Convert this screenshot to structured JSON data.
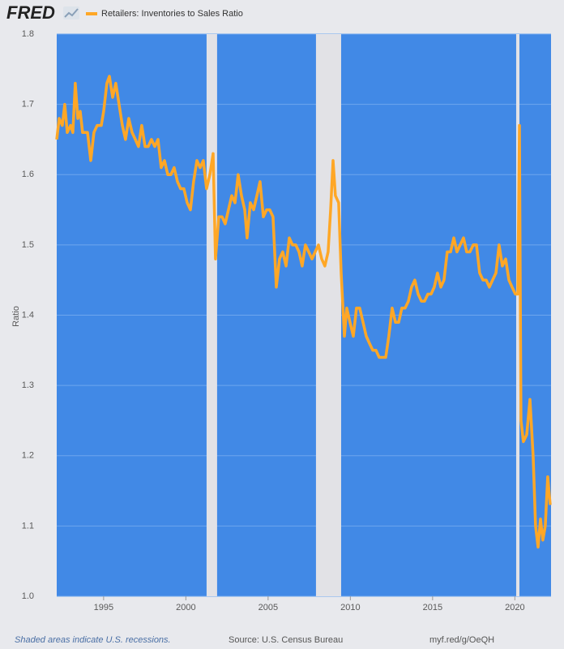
{
  "logo": "FRED",
  "chart_data": {
    "type": "line",
    "y_label": "Ratio",
    "series": [
      {
        "name": "Retailers: Inventories to Sales Ratio",
        "color": "#ffa726",
        "x": [
          1992.15,
          1992.3,
          1992.49,
          1992.64,
          1992.79,
          1992.99,
          1993.13,
          1993.28,
          1993.43,
          1993.58,
          1993.72,
          1994.02,
          1994.22,
          1994.41,
          1994.61,
          1994.86,
          1995.0,
          1995.2,
          1995.35,
          1995.55,
          1995.74,
          1995.94,
          1996.14,
          1996.33,
          1996.53,
          1996.73,
          1996.93,
          1997.12,
          1997.32,
          1997.52,
          1997.71,
          1997.91,
          1998.11,
          1998.31,
          1998.5,
          1998.7,
          1998.9,
          1999.09,
          1999.29,
          1999.49,
          1999.68,
          1999.88,
          2000.08,
          2000.28,
          2000.47,
          2000.67,
          2000.87,
          2001.06,
          2001.26,
          2001.46,
          2001.66,
          2001.8,
          2002.0,
          2002.2,
          2002.39,
          2002.59,
          2002.79,
          2002.99,
          2003.18,
          2003.38,
          2003.58,
          2003.72,
          2003.92,
          2004.12,
          2004.32,
          2004.51,
          2004.71,
          2004.91,
          2005.1,
          2005.3,
          2005.5,
          2005.69,
          2005.89,
          2006.09,
          2006.29,
          2006.48,
          2006.68,
          2006.88,
          2007.07,
          2007.27,
          2007.47,
          2007.67,
          2007.86,
          2008.06,
          2008.26,
          2008.45,
          2008.65,
          2008.8,
          2008.95,
          2009.09,
          2009.29,
          2009.44,
          2009.64,
          2009.78,
          2009.98,
          2010.18,
          2010.37,
          2010.57,
          2010.77,
          2010.97,
          2011.16,
          2011.36,
          2011.56,
          2011.75,
          2011.95,
          2012.15,
          2012.34,
          2012.54,
          2012.74,
          2012.94,
          2013.13,
          2013.33,
          2013.53,
          2013.72,
          2013.92,
          2014.12,
          2014.32,
          2014.51,
          2014.71,
          2014.91,
          2015.1,
          2015.3,
          2015.5,
          2015.69,
          2015.89,
          2016.09,
          2016.29,
          2016.48,
          2016.68,
          2016.88,
          2017.07,
          2017.27,
          2017.47,
          2017.67,
          2017.86,
          2018.06,
          2018.26,
          2018.45,
          2018.65,
          2018.85,
          2019.04,
          2019.24,
          2019.44,
          2019.64,
          2019.83,
          2020.03,
          2020.18,
          2020.28,
          2020.37,
          2020.52,
          2020.72,
          2020.92,
          2021.11,
          2021.26,
          2021.41,
          2021.56,
          2021.7,
          2021.85,
          2022.0,
          2022.15
        ],
        "values": [
          1.65,
          1.68,
          1.67,
          1.7,
          1.66,
          1.67,
          1.66,
          1.73,
          1.68,
          1.69,
          1.66,
          1.66,
          1.62,
          1.66,
          1.67,
          1.67,
          1.69,
          1.73,
          1.74,
          1.71,
          1.73,
          1.7,
          1.67,
          1.65,
          1.68,
          1.66,
          1.65,
          1.64,
          1.67,
          1.64,
          1.64,
          1.65,
          1.64,
          1.65,
          1.61,
          1.62,
          1.6,
          1.6,
          1.61,
          1.59,
          1.58,
          1.58,
          1.56,
          1.55,
          1.59,
          1.62,
          1.61,
          1.62,
          1.58,
          1.6,
          1.63,
          1.48,
          1.54,
          1.54,
          1.53,
          1.55,
          1.57,
          1.56,
          1.6,
          1.57,
          1.55,
          1.51,
          1.56,
          1.55,
          1.57,
          1.59,
          1.54,
          1.55,
          1.55,
          1.54,
          1.44,
          1.48,
          1.49,
          1.47,
          1.51,
          1.5,
          1.5,
          1.49,
          1.47,
          1.5,
          1.49,
          1.48,
          1.49,
          1.5,
          1.48,
          1.47,
          1.49,
          1.55,
          1.62,
          1.57,
          1.56,
          1.46,
          1.37,
          1.41,
          1.39,
          1.37,
          1.41,
          1.41,
          1.39,
          1.37,
          1.36,
          1.35,
          1.35,
          1.34,
          1.34,
          1.34,
          1.37,
          1.41,
          1.39,
          1.39,
          1.41,
          1.41,
          1.42,
          1.44,
          1.45,
          1.43,
          1.42,
          1.42,
          1.43,
          1.43,
          1.44,
          1.46,
          1.44,
          1.45,
          1.49,
          1.49,
          1.51,
          1.49,
          1.5,
          1.51,
          1.49,
          1.49,
          1.5,
          1.5,
          1.46,
          1.45,
          1.45,
          1.44,
          1.45,
          1.46,
          1.5,
          1.47,
          1.48,
          1.45,
          1.44,
          1.43,
          1.43,
          1.67,
          1.25,
          1.22,
          1.23,
          1.28,
          1.2,
          1.1,
          1.07,
          1.11,
          1.08,
          1.1,
          1.17,
          1.13
        ]
      }
    ],
    "recessions": [
      [
        2001.26,
        2001.9
      ],
      [
        2007.91,
        2009.44
      ],
      [
        2020.08,
        2020.28
      ]
    ],
    "recession_color": "#e2e2e6",
    "background": "#4189e6",
    "xlim": [
      1992.15,
      2022.2
    ],
    "xticks": [
      1995,
      2000,
      2005,
      2010,
      2015,
      2020
    ],
    "ylim": [
      1.0,
      1.8
    ],
    "yticks": [
      {
        "value": 1.0,
        "label": "1.0"
      },
      1.1,
      1.2,
      1.3,
      1.4,
      1.5,
      1.6,
      1.7,
      1.8
    ],
    "grid": true
  },
  "footer": {
    "note": "Shaded areas indicate U.S. recessions.",
    "source": "Source: U.S. Census Bureau",
    "link": "myf.red/g/OeQH"
  }
}
